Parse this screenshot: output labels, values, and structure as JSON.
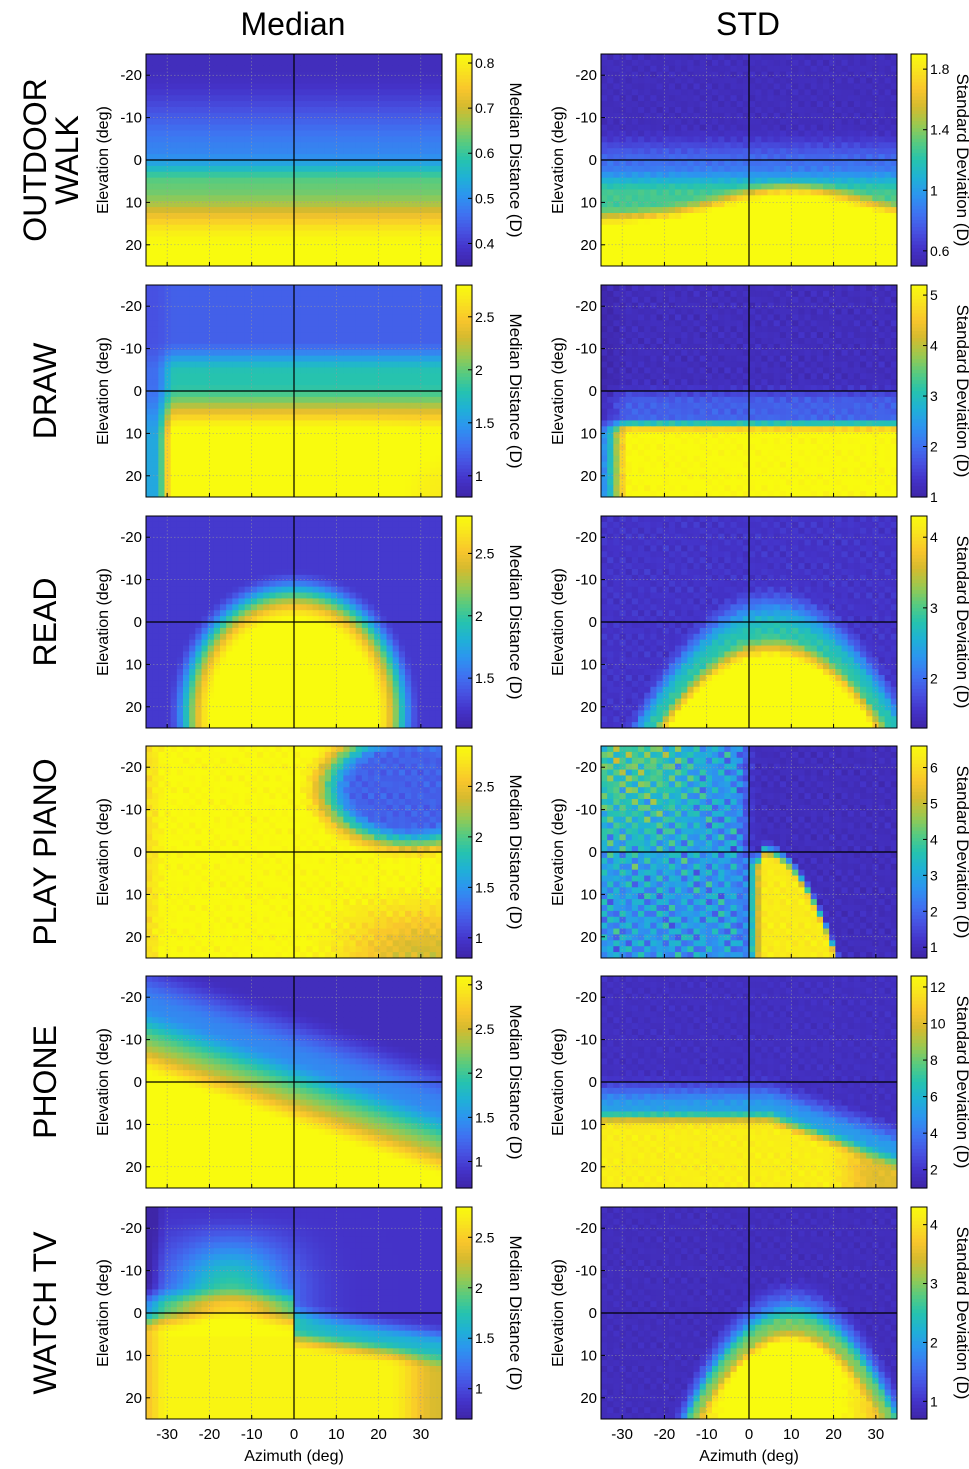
{
  "columns": [
    "Median",
    "STD"
  ],
  "rows": [
    "OUTDOOR WALK",
    "DRAW",
    "READ",
    "PLAY PIANO",
    "PHONE",
    "WATCH TV"
  ],
  "row_label_lines": [
    [
      "OUTDOOR",
      "WALK"
    ],
    [
      "DRAW"
    ],
    [
      "READ"
    ],
    [
      "PLAY PIANO"
    ],
    [
      "PHONE"
    ],
    [
      "WATCH TV"
    ]
  ],
  "colormap": [
    "#3e26a8",
    "#4433c9",
    "#4753e3",
    "#3e74f1",
    "#2c95ef",
    "#1fb1d6",
    "#26c3ae",
    "#58cb7f",
    "#9bc94f",
    "#d4ba2f",
    "#f9c52c",
    "#f9e21f",
    "#f9fb0e"
  ],
  "chart_data": {
    "type": "heatmap",
    "xlabel": "Azimuth (deg)",
    "ylabel": "Elevation (deg)",
    "xlim": [
      -35,
      35
    ],
    "ylim": [
      -25,
      25
    ],
    "y_reversed": true,
    "xticks": [
      -30,
      -20,
      -10,
      0,
      10,
      20,
      30
    ],
    "yticks": [
      -20,
      -10,
      0,
      10,
      20
    ],
    "grid": true,
    "crosshair": [
      0,
      0
    ],
    "median_colorbar_label": "Median Distance (D)",
    "std_colorbar_label": "Standard Deviation (D)",
    "panels": [
      {
        "activity": "OUTDOOR WALK",
        "stat": "Median",
        "clim": [
          0.35,
          0.82
        ],
        "ticks": [
          0.4,
          0.5,
          0.6,
          0.7,
          0.8
        ]
      },
      {
        "activity": "OUTDOOR WALK",
        "stat": "STD",
        "clim": [
          0.5,
          1.9
        ],
        "ticks": [
          0.6,
          1,
          1.4,
          1.8
        ]
      },
      {
        "activity": "DRAW",
        "stat": "Median",
        "clim": [
          0.8,
          2.8
        ],
        "ticks": [
          1,
          1.5,
          2,
          2.5
        ]
      },
      {
        "activity": "DRAW",
        "stat": "STD",
        "clim": [
          1,
          5.2
        ],
        "ticks": [
          1,
          2,
          3,
          4,
          5
        ]
      },
      {
        "activity": "READ",
        "stat": "Median",
        "clim": [
          1.1,
          2.8
        ],
        "ticks": [
          1.5,
          2,
          2.5
        ]
      },
      {
        "activity": "READ",
        "stat": "STD",
        "clim": [
          1.3,
          4.3
        ],
        "ticks": [
          2,
          3,
          4
        ]
      },
      {
        "activity": "PLAY PIANO",
        "stat": "Median",
        "clim": [
          0.8,
          2.9
        ],
        "ticks": [
          1,
          1.5,
          2,
          2.5
        ]
      },
      {
        "activity": "PLAY PIANO",
        "stat": "STD",
        "clim": [
          0.7,
          6.6
        ],
        "ticks": [
          1,
          2,
          3,
          4,
          5,
          6
        ]
      },
      {
        "activity": "PHONE",
        "stat": "Median",
        "clim": [
          0.7,
          3.1
        ],
        "ticks": [
          1,
          1.5,
          2,
          2.5,
          3
        ]
      },
      {
        "activity": "PHONE",
        "stat": "STD",
        "clim": [
          1,
          12.6
        ],
        "ticks": [
          2,
          4,
          6,
          8,
          10,
          12
        ]
      },
      {
        "activity": "WATCH TV",
        "stat": "Median",
        "clim": [
          0.7,
          2.8
        ],
        "ticks": [
          1,
          1.5,
          2,
          2.5
        ]
      },
      {
        "activity": "WATCH TV",
        "stat": "STD",
        "clim": [
          0.7,
          4.3
        ],
        "ticks": [
          1,
          2,
          3,
          4
        ]
      }
    ]
  }
}
